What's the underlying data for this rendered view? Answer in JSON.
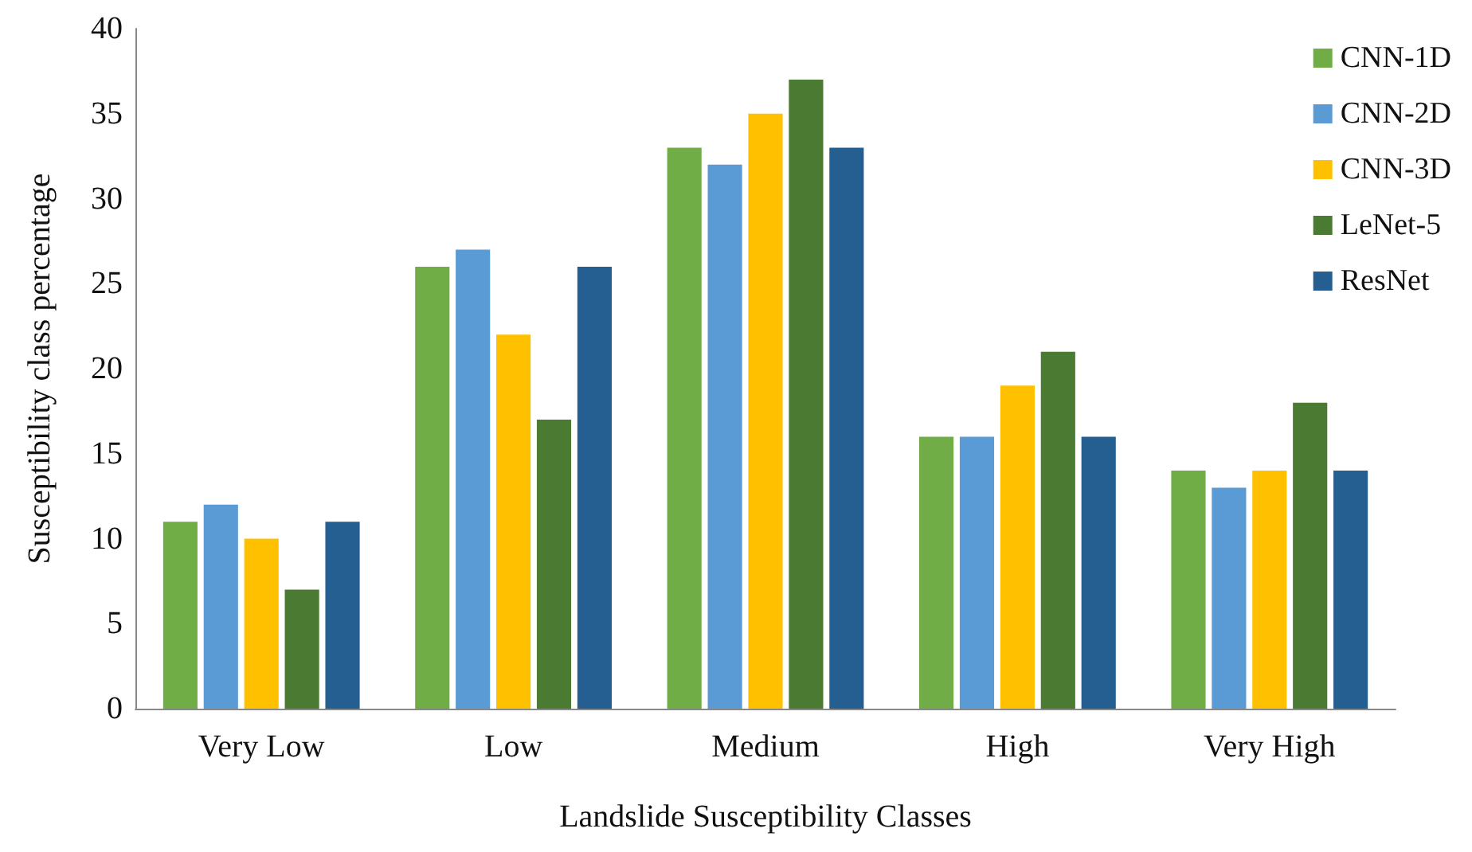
{
  "chart_data": {
    "type": "bar",
    "xlabel": "Landslide Susceptibility Classes",
    "ylabel": "Susceptibility class percentage",
    "categories": [
      "Very Low",
      "Low",
      "Medium",
      "High",
      "Very High"
    ],
    "series": [
      {
        "name": "CNN-1D",
        "color": "#70ad47",
        "values": [
          11,
          26,
          33,
          16,
          14
        ]
      },
      {
        "name": "CNN-2D",
        "color": "#5b9bd5",
        "values": [
          12,
          27,
          32,
          16,
          13
        ]
      },
      {
        "name": "CNN-3D",
        "color": "#ffc000",
        "values": [
          10,
          22,
          35,
          19,
          14
        ]
      },
      {
        "name": "LeNet-5",
        "color": "#4b7a32",
        "values": [
          7,
          17,
          37,
          21,
          18
        ]
      },
      {
        "name": "ResNet",
        "color": "#255e91",
        "values": [
          11,
          26,
          33,
          16,
          14
        ]
      }
    ],
    "ylim": [
      0,
      40
    ],
    "yticks": [
      0,
      5,
      10,
      15,
      20,
      25,
      30,
      35,
      40
    ],
    "grid": false,
    "legend": "top right"
  }
}
